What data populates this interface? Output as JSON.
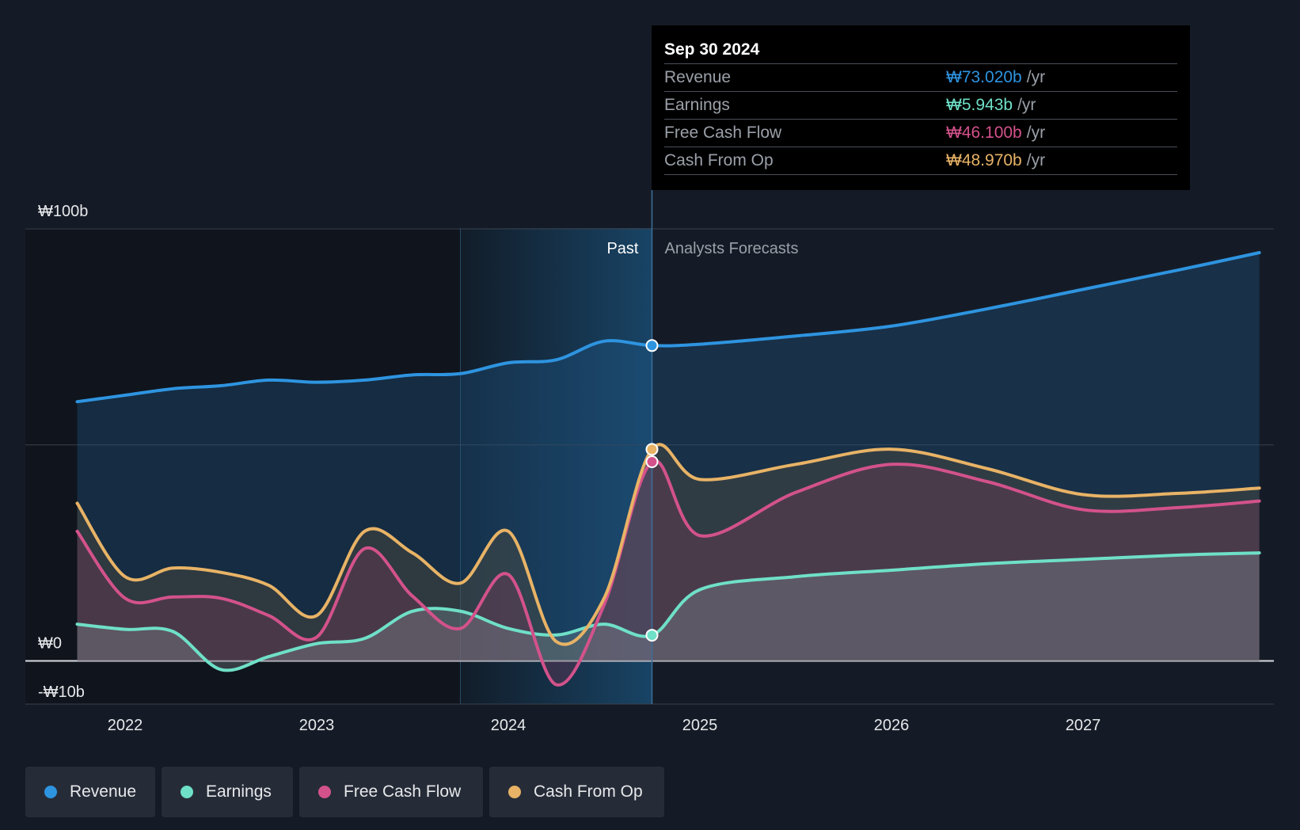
{
  "colors": {
    "background": "#151b26",
    "revenue": "#2e94e0",
    "earnings": "#6fe0c8",
    "free_cash_flow": "#d3528b",
    "cash_from_op": "#e8b366",
    "past_highlight": "#1a4c72"
  },
  "tooltip": {
    "date": "Sep 30 2024",
    "rows": [
      {
        "label": "Revenue",
        "value": "₩73.020b",
        "unit": "/yr",
        "color": "#2e94e0"
      },
      {
        "label": "Earnings",
        "value": "₩5.943b",
        "unit": "/yr",
        "color": "#6fe0c8"
      },
      {
        "label": "Free Cash Flow",
        "value": "₩46.100b",
        "unit": "/yr",
        "color": "#d3528b"
      },
      {
        "label": "Cash From Op",
        "value": "₩48.970b",
        "unit": "/yr",
        "color": "#e8b366"
      }
    ]
  },
  "legend": [
    {
      "label": "Revenue",
      "color": "#2e94e0"
    },
    {
      "label": "Earnings",
      "color": "#6fe0c8"
    },
    {
      "label": "Free Cash Flow",
      "color": "#d3528b"
    },
    {
      "label": "Cash From Op",
      "color": "#e8b366"
    }
  ],
  "chart_data": {
    "type": "area",
    "title": "",
    "y_unit": "₩b",
    "ylim": [
      -10,
      100
    ],
    "xlim": [
      2021.75,
      2027.92
    ],
    "y_tick_labels": [
      {
        "value": 100,
        "label": "₩100b"
      },
      {
        "value": 0,
        "label": "₩0"
      },
      {
        "value": -10,
        "label": "-₩10b"
      }
    ],
    "gridline_values": [
      100,
      50,
      0,
      -10
    ],
    "x_tick_labels": [
      {
        "value": 2022,
        "label": "2022"
      },
      {
        "value": 2023,
        "label": "2023"
      },
      {
        "value": 2024,
        "label": "2024"
      },
      {
        "value": 2025,
        "label": "2025"
      },
      {
        "value": 2026,
        "label": "2026"
      },
      {
        "value": 2027,
        "label": "2027"
      }
    ],
    "past_label": "Past",
    "forecast_label": "Analysts Forecasts",
    "divider_x": 2024.75,
    "highlight_start_x": 2023.75,
    "series": [
      {
        "name": "Revenue",
        "key": "revenue",
        "x": [
          2021.75,
          2022.0,
          2022.25,
          2022.5,
          2022.75,
          2023.0,
          2023.25,
          2023.5,
          2023.75,
          2024.0,
          2024.25,
          2024.5,
          2024.75,
          2025.0,
          2025.5,
          2026.0,
          2026.5,
          2027.0,
          2027.5,
          2027.92
        ],
        "values": [
          60.0,
          61.5,
          63.0,
          63.7,
          65.0,
          64.5,
          65.0,
          66.2,
          66.5,
          69.0,
          69.7,
          74.0,
          73.0,
          73.3,
          75.2,
          77.5,
          81.5,
          86.0,
          90.5,
          94.5
        ]
      },
      {
        "name": "Earnings",
        "key": "earnings",
        "x": [
          2021.75,
          2022.0,
          2022.25,
          2022.5,
          2022.75,
          2023.0,
          2023.25,
          2023.5,
          2023.75,
          2024.0,
          2024.25,
          2024.5,
          2024.75,
          2025.0,
          2025.5,
          2026.0,
          2026.5,
          2027.0,
          2027.5,
          2027.92
        ],
        "values": [
          8.5,
          7.3,
          6.8,
          -2.0,
          1.0,
          4.0,
          5.2,
          11.5,
          11.5,
          7.5,
          6.0,
          8.5,
          5.943,
          16.5,
          19.5,
          21.0,
          22.5,
          23.5,
          24.5,
          25.0
        ]
      },
      {
        "name": "Free Cash Flow",
        "key": "free_cash_flow",
        "x": [
          2021.75,
          2022.0,
          2022.25,
          2022.5,
          2022.75,
          2023.0,
          2023.25,
          2023.5,
          2023.75,
          2024.0,
          2024.25,
          2024.5,
          2024.75,
          2025.0,
          2025.5,
          2026.0,
          2026.5,
          2027.0,
          2027.5,
          2027.92
        ],
        "values": [
          30.0,
          14.5,
          14.8,
          14.5,
          10.5,
          5.5,
          26.0,
          15.0,
          7.5,
          20.0,
          -5.5,
          13.0,
          46.1,
          29.0,
          39.0,
          45.5,
          41.5,
          35.0,
          35.5,
          37.0
        ]
      },
      {
        "name": "Cash From Op",
        "key": "cash_from_op",
        "x": [
          2021.75,
          2022.0,
          2022.25,
          2022.5,
          2022.75,
          2023.0,
          2023.25,
          2023.5,
          2023.75,
          2024.0,
          2024.25,
          2024.5,
          2024.75,
          2025.0,
          2025.5,
          2026.0,
          2026.5,
          2027.0,
          2027.5,
          2027.92
        ],
        "values": [
          36.5,
          19.5,
          21.5,
          20.5,
          17.5,
          10.5,
          30.0,
          25.0,
          18.0,
          30.0,
          4.5,
          14.5,
          48.97,
          42.0,
          45.5,
          49.0,
          44.5,
          38.5,
          38.8,
          40.0
        ]
      }
    ]
  }
}
